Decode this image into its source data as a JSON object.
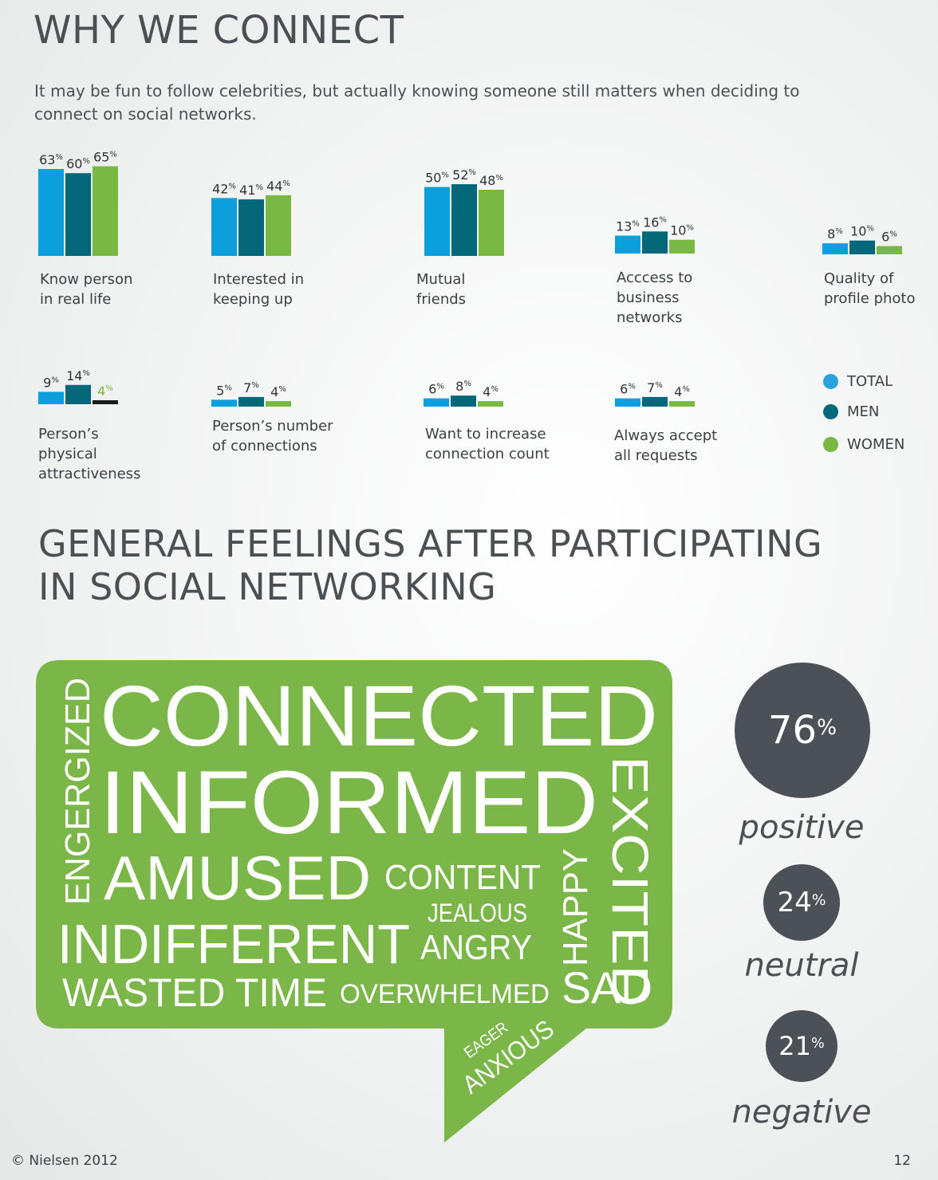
{
  "header": {
    "title": "WHY WE CONNECT",
    "intro": "It may be fun to follow celebrities, but actually knowing someone still matters when deciding to connect on social networks."
  },
  "chart_data": {
    "type": "bar",
    "series": [
      {
        "name": "TOTAL",
        "color": "#0ba0dc"
      },
      {
        "name": "MEN",
        "color": "#04677a"
      },
      {
        "name": "WOMEN",
        "color": "#79b843"
      }
    ],
    "categories": [
      "Know person\nin real life",
      "Interested in\nkeeping up",
      "Mutual\nfriends",
      "Acccess to\nbusiness\nnetworks",
      "Quality of\nprofile photo",
      "Person’s\nphysical\nattractiveness",
      "Person’s number\nof connections",
      "Want to increase\nconnection count",
      "Always accept\nall requests"
    ],
    "values": [
      [
        63,
        60,
        65
      ],
      [
        42,
        41,
        44
      ],
      [
        50,
        52,
        48
      ],
      [
        13,
        16,
        10
      ],
      [
        8,
        10,
        6
      ],
      [
        9,
        14,
        4
      ],
      [
        5,
        7,
        4
      ],
      [
        6,
        8,
        4
      ],
      [
        6,
        7,
        4
      ]
    ],
    "value_suffix": "%",
    "special": {
      "category_index": 5,
      "series_index": 2,
      "bar_color": "#1a1a1a",
      "label_color": "#79b843"
    }
  },
  "legend": {
    "items": [
      {
        "label": "TOTAL",
        "color": "#2aa3dc"
      },
      {
        "label": "MEN",
        "color": "#04677a"
      },
      {
        "label": "WOMEN",
        "color": "#79b843"
      }
    ]
  },
  "feelings": {
    "title_line1": "GENERAL FEELINGS AFTER PARTICIPATING",
    "title_line2": "IN SOCIAL NETWORKING",
    "bubble_color": "#7ab648",
    "words": {
      "connected": "CONNECTED",
      "informed": "INFORMED",
      "engergized": "ENGERGIZED",
      "excited": "EXCITED",
      "amused": "AMUSED",
      "content": "CONTENT",
      "jealous": "JEALOUS",
      "happy": "HAPPY",
      "indifferent": "INDIFFERENT",
      "angry": "ANGRY",
      "wasted_time": "WASTED TIME",
      "overwhelmed": "OVERWHELMED",
      "sad": "SAD",
      "eager": "EAGER",
      "anxious": "ANXIOUS"
    },
    "stats": [
      {
        "value": "76",
        "suffix": "%",
        "label": "positive",
        "share": 0.76
      },
      {
        "value": "24",
        "suffix": "%",
        "label": "neutral",
        "share": 0.24
      },
      {
        "value": "21",
        "suffix": "%",
        "label": "negative",
        "share": 0.21
      }
    ]
  },
  "footer": {
    "copyright": "© Nielsen 2012",
    "page_number": "12"
  }
}
